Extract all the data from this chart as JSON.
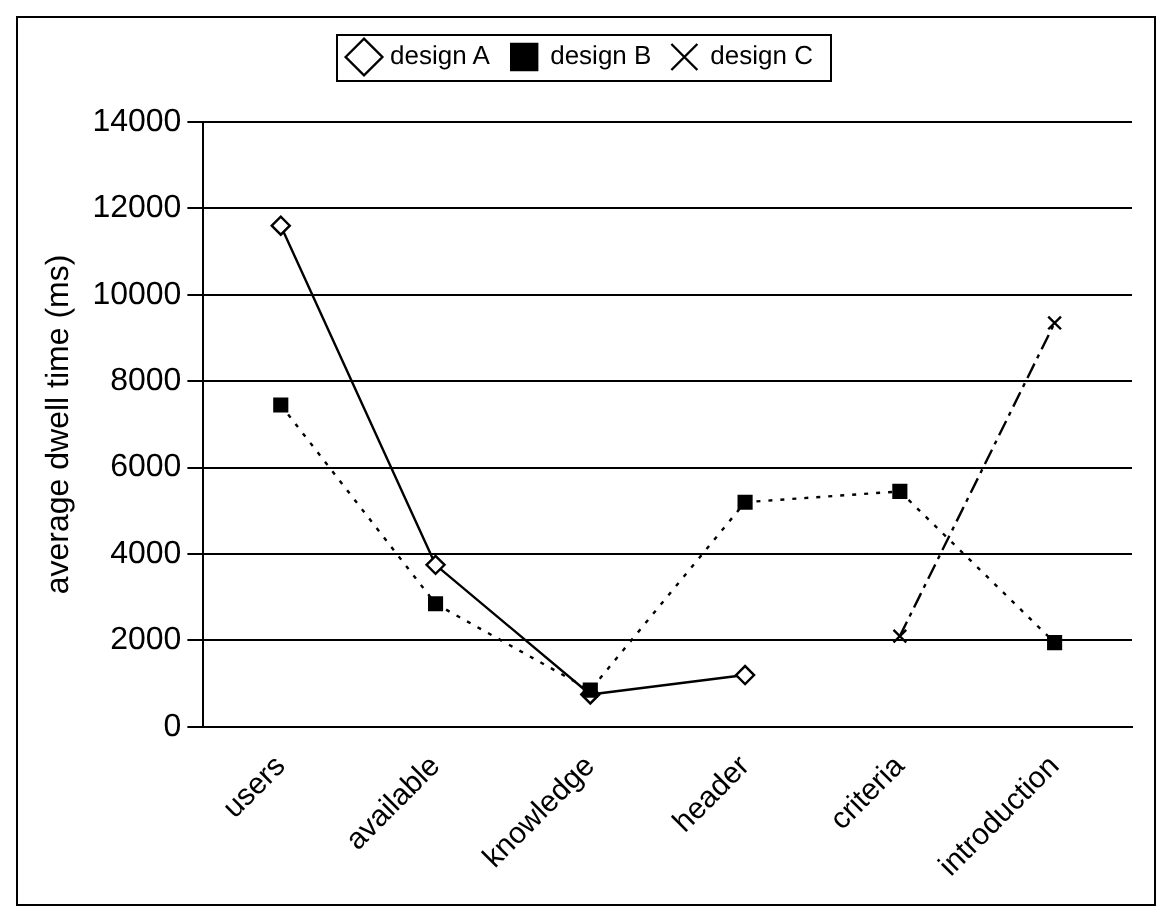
{
  "chart_data": {
    "type": "line",
    "ylabel": "average dwell time (ms)",
    "categories": [
      "users",
      "available",
      "knowledge",
      "header",
      "criteria",
      "introduction"
    ],
    "series": [
      {
        "name": "design A",
        "color": "#000000",
        "marker": "diamond",
        "line_style": "solid",
        "values": [
          11600,
          3750,
          750,
          1200,
          null,
          null
        ]
      },
      {
        "name": "design B",
        "color": "#000000",
        "marker": "square",
        "line_style": "dotted",
        "values": [
          7450,
          2850,
          850,
          5200,
          5450,
          1950
        ]
      },
      {
        "name": "design C",
        "color": "#000000",
        "marker": "cross",
        "line_style": "dashed",
        "values": [
          null,
          null,
          null,
          null,
          2100,
          9350
        ]
      }
    ],
    "ylim": [
      0,
      14000
    ],
    "yticks": [
      0,
      2000,
      4000,
      6000,
      8000,
      10000,
      12000,
      14000
    ],
    "grid": "y",
    "legend": "top"
  }
}
